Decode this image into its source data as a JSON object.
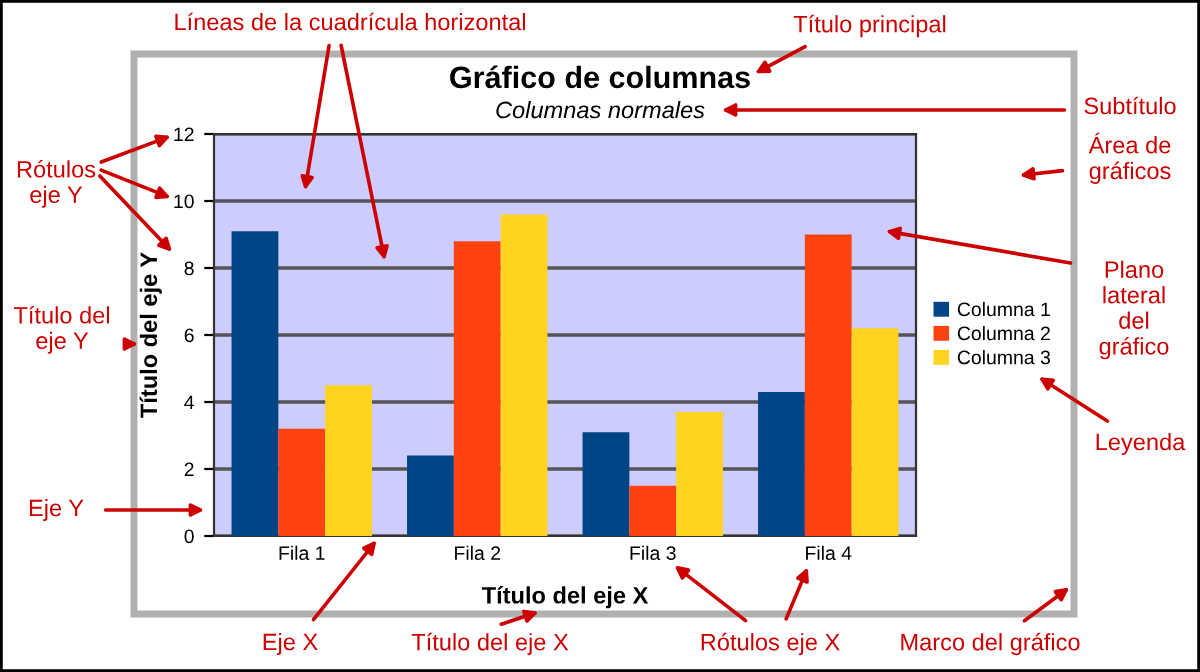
{
  "chart_data": {
    "type": "bar",
    "title": "Gráfico de columnas",
    "subtitle": "Columnas normales",
    "xlabel": "Título del eje X",
    "ylabel": "Título del eje Y",
    "categories": [
      "Fila 1",
      "Fila 2",
      "Fila 3",
      "Fila 4"
    ],
    "series": [
      {
        "name": "Columna 1",
        "color": "#004586",
        "values": [
          9.1,
          2.4,
          3.1,
          4.3
        ]
      },
      {
        "name": "Columna 2",
        "color": "#ff420e",
        "values": [
          3.2,
          8.8,
          1.5,
          9.0
        ]
      },
      {
        "name": "Columna 3",
        "color": "#ffd320",
        "values": [
          4.5,
          9.6,
          3.7,
          6.2
        ]
      }
    ],
    "ylim": [
      0,
      12
    ],
    "yticks": [
      0,
      2,
      4,
      6,
      8,
      10,
      12
    ],
    "grid": "y",
    "legend": "right",
    "annotations": [
      "Líneas de la cuadrícula horizontal",
      "Título principal",
      "Subtítulo",
      "Área de\ngráficos",
      "Rótulos\neje Y",
      "Título del\neje Y",
      "Plano\nlateral\ndel\ngráfico",
      "Leyenda",
      "Eje Y",
      "Eje X",
      "Título del eje X",
      "Rótulos eje X",
      "Marco del gráfico"
    ]
  }
}
